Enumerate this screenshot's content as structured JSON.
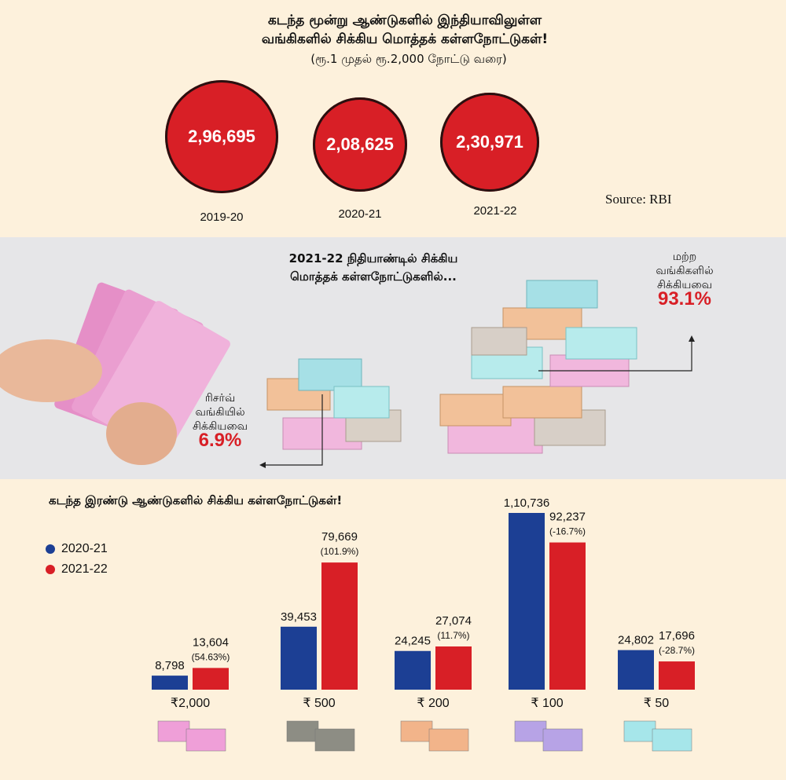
{
  "header": {
    "title_line1": "கடந்த மூன்று ஆண்டுகளில் இந்தியாவிலுள்ள",
    "title_line2": "வங்கிகளில் சிக்கிய மொத்தக் கள்ளநோட்டுகள்!",
    "subtitle": "(ரூ.1 முதல் ரூ.2,000 நோட்டு வரை)",
    "source": "Source: RBI"
  },
  "totals": [
    {
      "year": "2019-20",
      "value": "2,96,695"
    },
    {
      "year": "2020-21",
      "value": "2,08,625"
    },
    {
      "year": "2021-22",
      "value": "2,30,971"
    }
  ],
  "share": {
    "title_line1": "2021-22 நிதியாண்டில் சிக்கிய",
    "title_line2": "மொத்தக் கள்ளநோட்டுகளில்...",
    "other_banks": {
      "line1": "மற்ற",
      "line2": "வங்கிகளில்",
      "line3": "சிக்கியவை",
      "pct": "93.1%"
    },
    "rbi": {
      "line1": "ரிசர்வ்",
      "line2": "வங்கியில்",
      "line3": "சிக்கியவை",
      "pct": "6.9%"
    }
  },
  "chart_data": {
    "type": "bar",
    "title": "கடந்த இரண்டு ஆண்டுகளில் சிக்கிய கள்ளநோட்டுகள்!",
    "categories": [
      "₹2,000",
      "₹ 500",
      "₹ 200",
      "₹ 100",
      "₹ 50"
    ],
    "series": [
      {
        "name": "2020-21",
        "color": "#1c3f94",
        "values": [
          8798,
          39453,
          24245,
          110736,
          24802
        ],
        "labels": [
          "8,798",
          "39,453",
          "24,245",
          "1,10,736",
          "24,802"
        ]
      },
      {
        "name": "2021-22",
        "color": "#d81f26",
        "values": [
          13604,
          79669,
          27074,
          92237,
          17696
        ],
        "labels": [
          "13,604",
          "79,669",
          "27,074",
          "92,237",
          "17,696"
        ],
        "changes": [
          "(54.63%)",
          "(101.9%)",
          "(11.7%)",
          "(-16.7%)",
          "(-28.7%)"
        ]
      }
    ],
    "ylim": [
      0,
      110736
    ],
    "legend_position": "left"
  }
}
